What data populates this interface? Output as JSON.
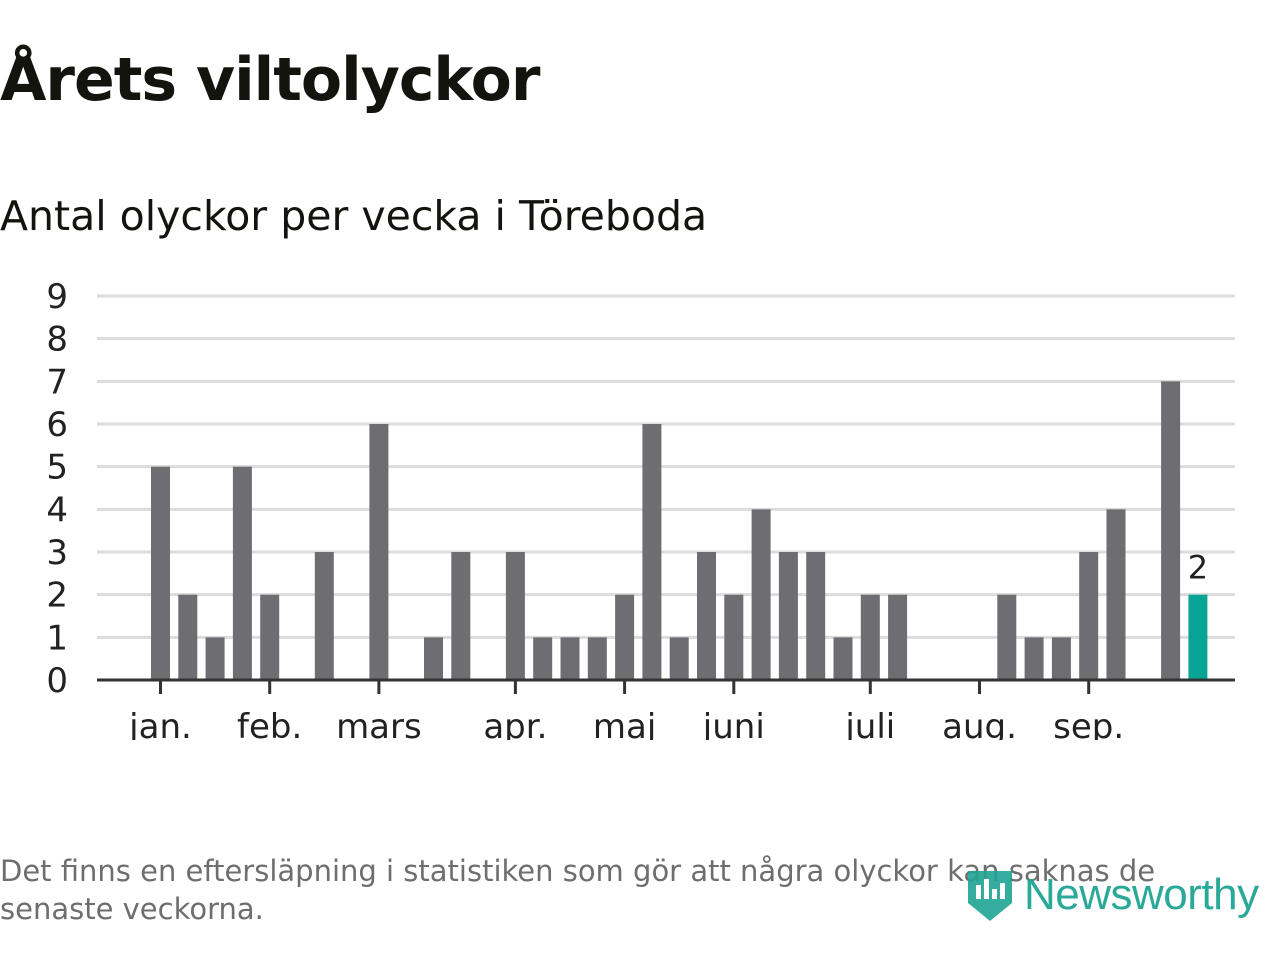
{
  "header": {
    "title": "Årets viltolyckor",
    "subtitle": "Antal olyckor per vecka i Töreboda"
  },
  "footer": {
    "note": "Det finns en eftersläpning i statistiken som gör att några olyckor kan saknas de senaste veckorna.",
    "logo_text": "Newsworthy",
    "logo_icon": "newsworthy-logo-icon"
  },
  "colors": {
    "bar": "#6e6d72",
    "highlight": "#0aa497",
    "grid": "#dcdcdc",
    "axis": "#333333"
  },
  "chart_data": {
    "type": "bar",
    "ylim": [
      0,
      9
    ],
    "yticks": [
      0,
      1,
      2,
      3,
      4,
      5,
      6,
      7,
      8,
      9
    ],
    "grid": true,
    "weeks": [
      1,
      2,
      3,
      4,
      5,
      6,
      7,
      8,
      9,
      10,
      11,
      12,
      13,
      14,
      15,
      16,
      17,
      18,
      19,
      20,
      21,
      22,
      23,
      24,
      25,
      26,
      27,
      28,
      29,
      30,
      31,
      32,
      33,
      34,
      35,
      36,
      37,
      38,
      39,
      40,
      41
    ],
    "values": [
      0,
      0,
      5,
      2,
      1,
      5,
      2,
      0,
      3,
      0,
      6,
      0,
      1,
      3,
      0,
      3,
      1,
      1,
      1,
      2,
      6,
      1,
      3,
      2,
      4,
      3,
      3,
      1,
      2,
      2,
      0,
      0,
      0,
      2,
      1,
      1,
      3,
      4,
      0,
      7,
      2
    ],
    "highlight_index": 40,
    "highlight_label": "2",
    "month_labels": [
      {
        "label": "jan.",
        "week": 3
      },
      {
        "label": "feb.",
        "week": 7
      },
      {
        "label": "mars",
        "week": 11
      },
      {
        "label": "apr.",
        "week": 16
      },
      {
        "label": "maj",
        "week": 20
      },
      {
        "label": "juni",
        "week": 24
      },
      {
        "label": "juli",
        "week": 29
      },
      {
        "label": "aug.",
        "week": 33
      },
      {
        "label": "sep.",
        "week": 37
      }
    ]
  }
}
